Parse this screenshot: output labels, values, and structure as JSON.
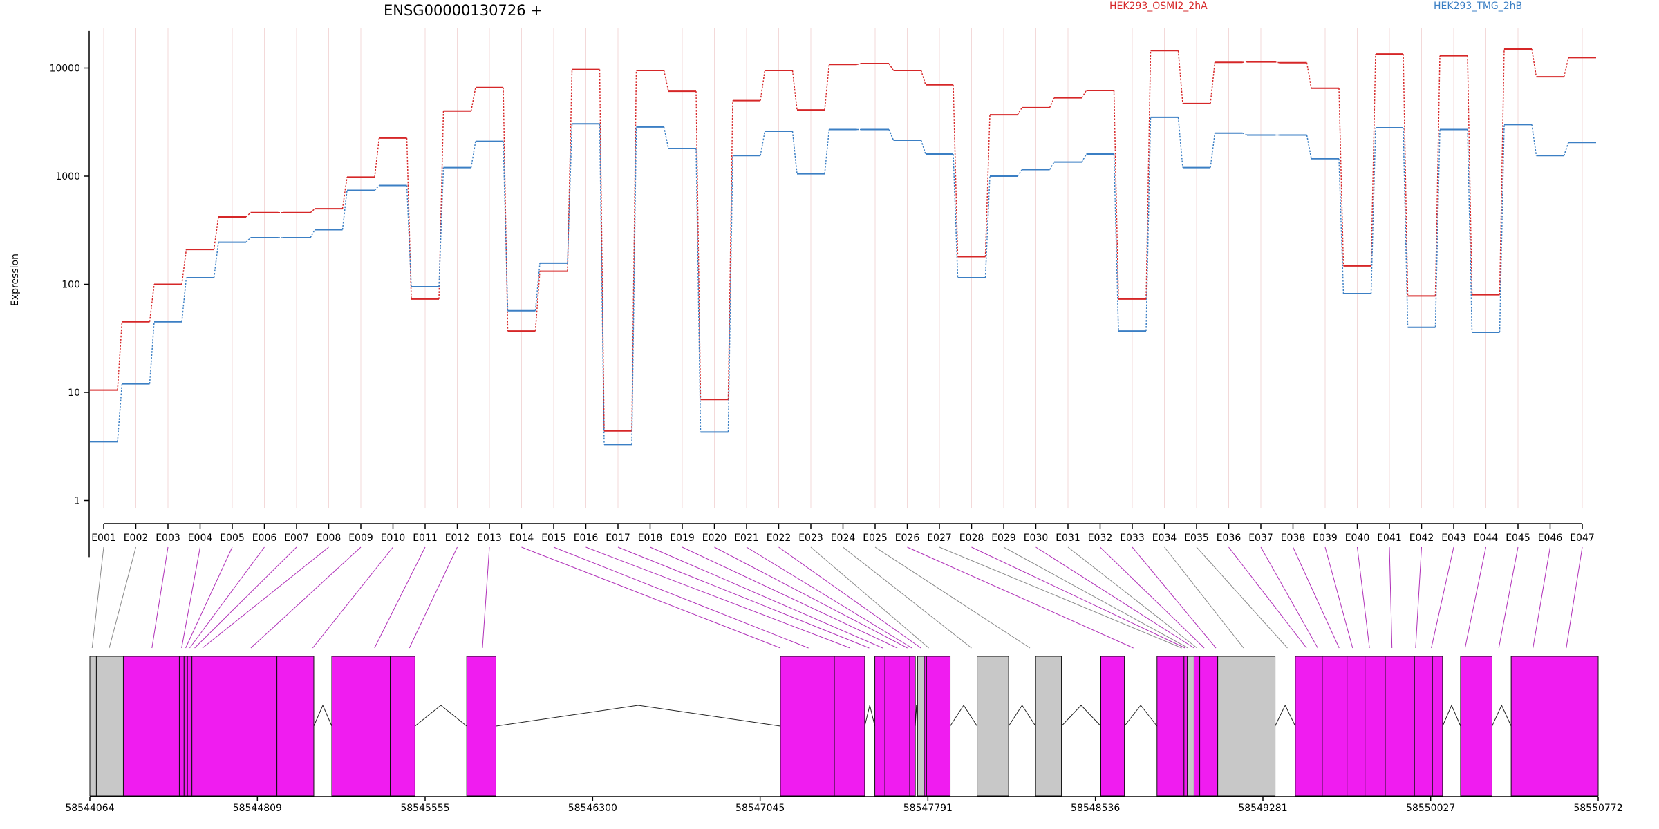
{
  "chart_data": {
    "type": "line",
    "title": "ENSG00000130726 +",
    "ylabel": "Expression",
    "yscale": "log",
    "ylim": [
      0.3,
      22000
    ],
    "yticks": [
      "1",
      "10",
      "100",
      "1000",
      "10000"
    ],
    "legend_placement": "top-right",
    "categories": [
      "E001",
      "E002",
      "E003",
      "E004",
      "E005",
      "E006",
      "E007",
      "E008",
      "E009",
      "E010",
      "E011",
      "E012",
      "E013",
      "E014",
      "E015",
      "E016",
      "E017",
      "E018",
      "E019",
      "E020",
      "E021",
      "E022",
      "E023",
      "E024",
      "E025",
      "E026",
      "E027",
      "E028",
      "E029",
      "E030",
      "E031",
      "E032",
      "E033",
      "E034",
      "E035",
      "E036",
      "E037",
      "E038",
      "E039",
      "E040",
      "E041",
      "E042",
      "E043",
      "E044",
      "E045",
      "E046",
      "E047"
    ],
    "series": [
      {
        "name": "HEK293_OSMI2_2hA",
        "color": "#d62728",
        "values": [
          10.5,
          45,
          100,
          210,
          420,
          460,
          460,
          500,
          980,
          2250,
          73,
          4000,
          6600,
          37,
          132,
          9700,
          4.4,
          9500,
          6100,
          8.6,
          5000,
          9500,
          4100,
          10800,
          11000,
          9500,
          7000,
          180,
          3700,
          4300,
          5300,
          6200,
          73,
          14500,
          4700,
          11300,
          11400,
          11200,
          6500,
          148,
          13500,
          78,
          13000,
          80,
          15000,
          8300,
          12500
        ]
      },
      {
        "name": "HEK293_TMG_2hB",
        "color": "#3b7fc4",
        "values": [
          3.5,
          12,
          45,
          115,
          245,
          270,
          270,
          320,
          740,
          820,
          95,
          1200,
          2100,
          57,
          157,
          3050,
          3.3,
          2850,
          1800,
          4.3,
          1550,
          2600,
          1050,
          2700,
          2700,
          2150,
          1600,
          115,
          1000,
          1150,
          1350,
          1600,
          37,
          3500,
          1200,
          2500,
          2400,
          2400,
          1450,
          82,
          2800,
          40,
          2700,
          36,
          3000,
          1550,
          2050
        ]
      }
    ],
    "gene_track": {
      "coordinates": [
        "58544064",
        "58544809",
        "58545555",
        "58546300",
        "58547045",
        "58547791",
        "58548536",
        "58549281",
        "58550027",
        "58550772"
      ],
      "start": 58544064,
      "end": 58550772,
      "exon_color": "#f01cf0",
      "neutral_color": "#c8c8c8",
      "exons": [
        {
          "s": 58544064,
          "e": 58544093,
          "c": "g"
        },
        {
          "s": 58544093,
          "e": 58544213,
          "c": "g"
        },
        {
          "s": 58544213,
          "e": 58544462,
          "c": "m"
        },
        {
          "s": 58544462,
          "e": 58544483,
          "c": "m"
        },
        {
          "s": 58544483,
          "e": 58544498,
          "c": "m"
        },
        {
          "s": 58544498,
          "e": 58544518,
          "c": "m"
        },
        {
          "s": 58544518,
          "e": 58544896,
          "c": "m"
        },
        {
          "s": 58544896,
          "e": 58545060,
          "c": "m"
        },
        {
          "s": 58545140,
          "e": 58545400,
          "c": "m"
        },
        {
          "s": 58545400,
          "e": 58545510,
          "c": "m"
        },
        {
          "s": 58545740,
          "e": 58545870,
          "c": "m"
        },
        {
          "s": 58547135,
          "e": 58547375,
          "c": "m"
        },
        {
          "s": 58547375,
          "e": 58547510,
          "c": "m"
        },
        {
          "s": 58547555,
          "e": 58547600,
          "c": "m"
        },
        {
          "s": 58547600,
          "e": 58547710,
          "c": "m"
        },
        {
          "s": 58547710,
          "e": 58547735,
          "c": "m"
        },
        {
          "s": 58547745,
          "e": 58547775,
          "c": "g"
        },
        {
          "s": 58547775,
          "e": 58547785,
          "c": "m"
        },
        {
          "s": 58547785,
          "e": 58547890,
          "c": "m"
        },
        {
          "s": 58548010,
          "e": 58548150,
          "c": "g"
        },
        {
          "s": 58548270,
          "e": 58548385,
          "c": "g"
        },
        {
          "s": 58548560,
          "e": 58548665,
          "c": "m"
        },
        {
          "s": 58548810,
          "e": 58548930,
          "c": "m"
        },
        {
          "s": 58548930,
          "e": 58548945,
          "c": "m"
        },
        {
          "s": 58548945,
          "e": 58548975,
          "c": "g"
        },
        {
          "s": 58548975,
          "e": 58549000,
          "c": "m"
        },
        {
          "s": 58549000,
          "e": 58549080,
          "c": "m"
        },
        {
          "s": 58549080,
          "e": 58549335,
          "c": "g"
        },
        {
          "s": 58549425,
          "e": 58549545,
          "c": "m"
        },
        {
          "s": 58549545,
          "e": 58549655,
          "c": "m"
        },
        {
          "s": 58549655,
          "e": 58549735,
          "c": "m"
        },
        {
          "s": 58549735,
          "e": 58549825,
          "c": "m"
        },
        {
          "s": 58549825,
          "e": 58549955,
          "c": "m"
        },
        {
          "s": 58549955,
          "e": 58550035,
          "c": "m"
        },
        {
          "s": 58550035,
          "e": 58550080,
          "c": "m"
        },
        {
          "s": 58550160,
          "e": 58550300,
          "c": "m"
        },
        {
          "s": 58550385,
          "e": 58550420,
          "c": "m"
        },
        {
          "s": 58550420,
          "e": 58550772,
          "c": "m"
        }
      ],
      "introns": [
        {
          "s": 58545060,
          "e": 58545140
        },
        {
          "s": 58545510,
          "e": 58545740
        },
        {
          "s": 58545870,
          "e": 58547135
        },
        {
          "s": 58547510,
          "e": 58547555
        },
        {
          "s": 58547735,
          "e": 58547745
        },
        {
          "s": 58547890,
          "e": 58548010
        },
        {
          "s": 58548150,
          "e": 58548270
        },
        {
          "s": 58548385,
          "e": 58548560
        },
        {
          "s": 58548665,
          "e": 58548810
        },
        {
          "s": 58549335,
          "e": 58549425
        },
        {
          "s": 58550080,
          "e": 58550160
        },
        {
          "s": 58550300,
          "e": 58550385
        }
      ],
      "exon_map": [
        58544074,
        58544150,
        58544340,
        58544472,
        58544490,
        58544508,
        58544530,
        58544565,
        58544780,
        58545055,
        58545330,
        58545485,
        58545810,
        58547135,
        58547260,
        58547445,
        58547530,
        58547590,
        58547655,
        58547700,
        58547720,
        58547760,
        58547795,
        58547985,
        58548245,
        58548705,
        58548920,
        58548935,
        58548948,
        58548975,
        58548988,
        58549020,
        58549072,
        58549195,
        58549390,
        58549475,
        58549525,
        58549620,
        58549680,
        58549755,
        58549855,
        58549960,
        58550030,
        58550180,
        58550330,
        58550482,
        58550630
      ],
      "exon_map_color": [
        "g",
        "g",
        "m",
        "m",
        "m",
        "m",
        "m",
        "m",
        "m",
        "m",
        "m",
        "m",
        "m",
        "m",
        "m",
        "m",
        "m",
        "m",
        "m",
        "m",
        "m",
        "m",
        "g",
        "g",
        "g",
        "m",
        "g",
        "m",
        "g",
        "m",
        "g",
        "m",
        "m",
        "g",
        "g",
        "m",
        "m",
        "m",
        "m",
        "m",
        "m",
        "m",
        "m",
        "m",
        "m",
        "m",
        "m"
      ]
    }
  }
}
